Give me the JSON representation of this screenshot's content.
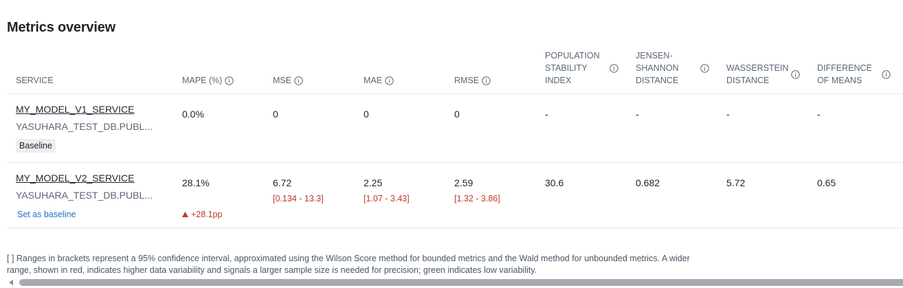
{
  "title": "Metrics overview",
  "table": {
    "headers": [
      "SERVICE",
      "MAPE (%)",
      "MSE",
      "MAE",
      "RMSE",
      "POPULATION STABILITY INDEX",
      "JENSEN-SHANNON DISTANCE",
      "WASSERSTEIN DISTANCE",
      "DIFFERENCE OF MEANS"
    ],
    "info_headers": [
      1,
      2,
      3,
      4,
      5,
      6,
      7,
      8
    ],
    "rows": [
      {
        "service": "MY_MODEL_V1_SERVICE",
        "source": "YASUHARA_TEST_DB.PUBL...",
        "badge": "Baseline",
        "cells": [
          {
            "value": "0.0%"
          },
          {
            "value": "0"
          },
          {
            "value": "0"
          },
          {
            "value": "0"
          },
          {
            "value": "-"
          },
          {
            "value": "-"
          },
          {
            "value": "-"
          },
          {
            "value": "-"
          }
        ]
      },
      {
        "service": "MY_MODEL_V2_SERVICE",
        "source": "YASUHARA_TEST_DB.PUBL...",
        "action": "Set as baseline",
        "cells": [
          {
            "value": "28.1%",
            "delta": "+28.1pp"
          },
          {
            "value": "6.72",
            "range": "[0.134 - 13.3]"
          },
          {
            "value": "2.25",
            "range": "[1.07 - 3.43]"
          },
          {
            "value": "2.59",
            "range": "[1.32 - 3.86]"
          },
          {
            "value": "30.6"
          },
          {
            "value": "0.682"
          },
          {
            "value": "5.72"
          },
          {
            "value": "0.65"
          }
        ]
      }
    ]
  },
  "footnote": "[ ] Ranges in brackets represent a 95% confidence interval, approximated using the Wilson Score method for bounded metrics and the Wald method for unbounded metrics. A wider range, shown in red, indicates higher data variability and signals a larger sample size is needed for precision; green indicates low variability."
}
